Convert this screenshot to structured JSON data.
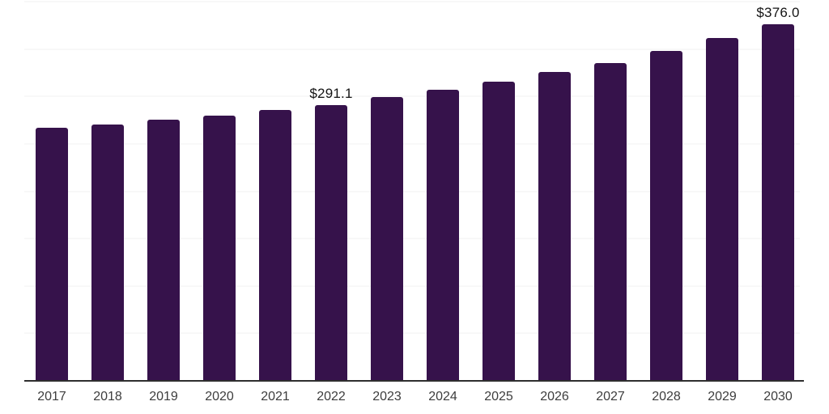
{
  "chart": {
    "background_color": "#ffffff",
    "bar_color": "#36124B",
    "axis_color": "#2e2e2e",
    "gridline_color": "#f1f1f1",
    "data_label_color": "#141414",
    "tick_label_color": "#3d3d3d"
  },
  "chart_data": {
    "type": "bar",
    "title": "",
    "xlabel": "",
    "ylabel": "",
    "categories": [
      "2017",
      "2018",
      "2019",
      "2020",
      "2021",
      "2022",
      "2023",
      "2024",
      "2025",
      "2026",
      "2027",
      "2028",
      "2029",
      "2030"
    ],
    "values": [
      266.8,
      270.8,
      275.9,
      280.0,
      285.9,
      291.1,
      299.0,
      306.9,
      315.2,
      325.4,
      335.4,
      348.1,
      362.0,
      376.0
    ],
    "data_labels": [
      {
        "category": "2022",
        "text": "$291.1"
      },
      {
        "category": "2030",
        "text": "$376.0"
      }
    ],
    "ylim": [
      0,
      400
    ],
    "gridline_step": 50,
    "grid": true,
    "legend": false,
    "y_axis_labels_shown": false
  }
}
